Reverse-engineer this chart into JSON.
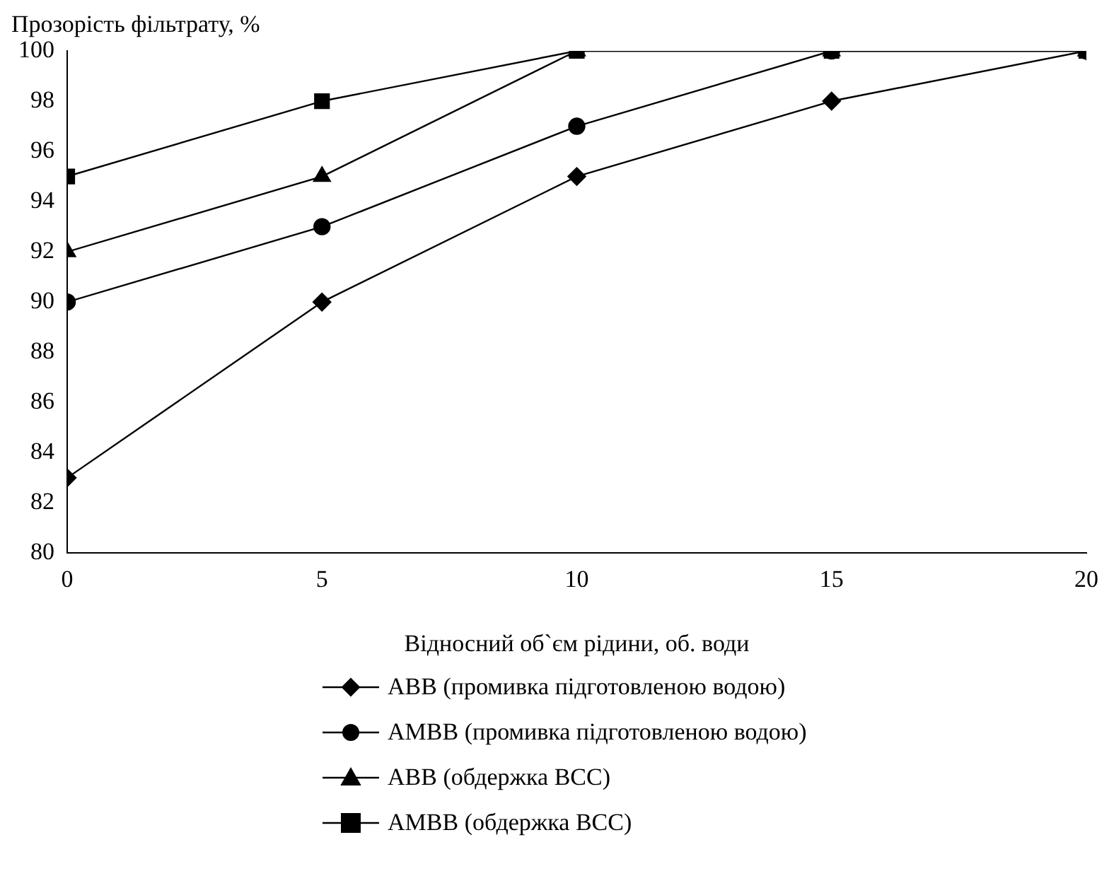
{
  "chart_data": {
    "type": "line",
    "ylabel": "Прозорість фільтрату, %",
    "xlabel": "Відносний об`єм рідини, об. води",
    "x": [
      0,
      5,
      10,
      15,
      20
    ],
    "xlim": [
      0,
      20
    ],
    "xticks": [
      0,
      5,
      10,
      15,
      20
    ],
    "ylim": [
      80,
      100
    ],
    "yticks": [
      80,
      82,
      84,
      86,
      88,
      90,
      92,
      94,
      96,
      98,
      100
    ],
    "grid": false,
    "legend": "bottom",
    "line_style": "solid",
    "series": [
      {
        "name": "АВВ (промивка підготовленою водою)",
        "color": "#000000",
        "marker": "diamond",
        "values": [
          83,
          90,
          95,
          98,
          100
        ]
      },
      {
        "name": "АМВВ (промивка підготовленою водою)",
        "color": "#000000",
        "marker": "circle",
        "values": [
          90,
          93,
          97,
          100,
          100
        ]
      },
      {
        "name": "АВВ (обдержка ВСС)",
        "color": "#000000",
        "marker": "triangle",
        "values": [
          92,
          95,
          100,
          100,
          100
        ]
      },
      {
        "name": "АМВВ (обдержка ВСС)",
        "color": "#000000",
        "marker": "square",
        "values": [
          95,
          98,
          100,
          100,
          100
        ]
      }
    ]
  }
}
